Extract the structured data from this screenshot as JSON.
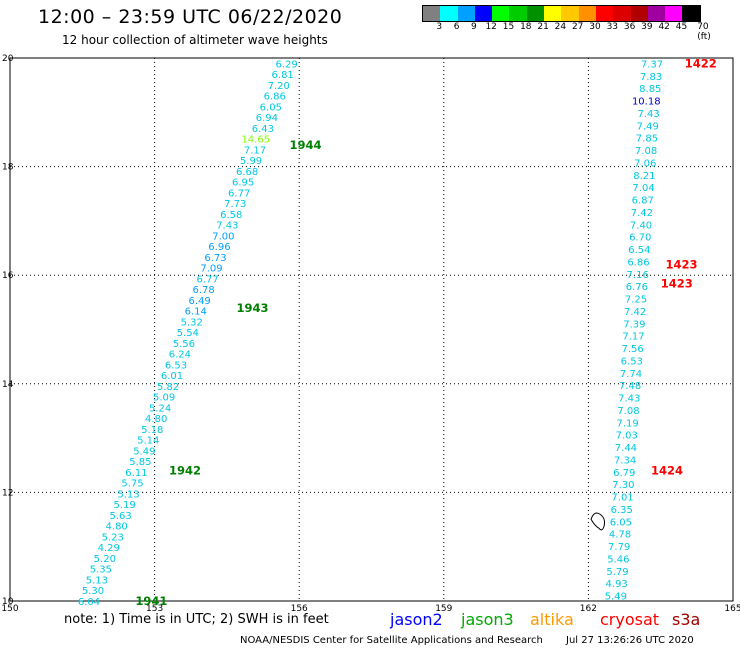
{
  "title": "12:00 – 23:59 UTC 06/22/2020",
  "subtitle": "12 hour collection of altimeter wave heights",
  "legend": {
    "labels": [
      "3",
      "6",
      "9",
      "12",
      "15",
      "18",
      "21",
      "24",
      "27",
      "30",
      "33",
      "36",
      "39",
      "42",
      "45",
      "70 (ft)"
    ],
    "colors": [
      "#808080",
      "#00ffff",
      "#00a0ff",
      "#0000ff",
      "#00ff00",
      "#00cc00",
      "#009000",
      "#ffff00",
      "#ffc800",
      "#ff9000",
      "#ff0000",
      "#dd0000",
      "#b00000",
      "#a000a0",
      "#ff00ff",
      "#000000"
    ]
  },
  "map": {
    "lon_range": [
      150,
      165
    ],
    "lat_range": [
      10,
      20
    ],
    "x_ticks": [
      "150",
      "153",
      "156",
      "159",
      "162",
      "165"
    ],
    "y_ticks": [
      "10",
      "12",
      "14",
      "16",
      "18",
      "20"
    ],
    "tracks": [
      {
        "label": "1944",
        "lat": 18.4,
        "lon": 155.8,
        "color": "#008000"
      },
      {
        "label": "1943",
        "lat": 15.4,
        "lon": 154.7,
        "color": "#008000"
      },
      {
        "label": "1942",
        "lat": 12.4,
        "lon": 153.3,
        "color": "#008000"
      },
      {
        "label": "1941",
        "lat": 10.0,
        "lon": 152.6,
        "color": "#008000"
      },
      {
        "label": "1422",
        "lat": 19.9,
        "lon": 164.0,
        "color": "#ff0000"
      },
      {
        "label": "1423",
        "lat": 16.2,
        "lon": 163.6,
        "color": "#ff0000"
      },
      {
        "label": "1423",
        "lat": 15.85,
        "lon": 163.5,
        "color": "#ff0000"
      },
      {
        "label": "1424",
        "lat": 12.4,
        "lon": 163.3,
        "color": "#ff0000"
      }
    ],
    "swaths": [
      {
        "start_lat": 19.9,
        "start_lon": 155.97,
        "end_lat": 10.0,
        "end_lon": 151.87,
        "values": [
          "6.29",
          "6.81",
          "7.20",
          "6.86",
          "6.05",
          "6.94",
          "6.43",
          "14.65",
          "7.17",
          "5.99",
          "6.68",
          "6.95",
          "6.77",
          "7.73",
          "6.58",
          "7.43",
          "7.00",
          "6.96",
          "6.73",
          "7.09",
          "6.77",
          "6.78",
          "6.49",
          "6.14",
          "5.32",
          "5.54",
          "5.56",
          "6.24",
          "6.53",
          "6.01",
          "5.82",
          "5.09",
          "5.24",
          "4.80",
          "5.18",
          "5.14",
          "5.49",
          "5.85",
          "6.11",
          "5.75",
          "5.13",
          "5.19",
          "5.63",
          "4.80",
          "5.23",
          "4.29",
          "5.20",
          "5.35",
          "5.13",
          "5.30",
          "6.04"
        ],
        "colors": {
          "7": "#80ff00",
          "16": "#00a0ff",
          "17": "#00a0ff",
          "18": "#00a0ff",
          "19": "#00a0ff",
          "21": "#00a0ff",
          "22": "#00a0ff",
          "23": "#00a0ff"
        }
      },
      {
        "start_lat": 19.9,
        "start_lon": 163.55,
        "end_lat": 10.1,
        "end_lon": 162.8,
        "values": [
          "7.37",
          "7.83",
          "8.85",
          "10.18",
          "7.43",
          "7.49",
          "7.85",
          "7.08",
          "7.06",
          "8.21",
          "7.04",
          "6.87",
          "7.42",
          "7.40",
          "6.70",
          "6.54",
          "6.86",
          "7.16",
          "6.76",
          "7.25",
          "7.42",
          "7.39",
          "7.17",
          "7.56",
          "6.53",
          "7.74",
          "7.48",
          "7.43",
          "7.08",
          "7.19",
          "7.03",
          "7.44",
          "7.34",
          "6.79",
          "7.30",
          "7.01",
          "6.35",
          "6.05",
          "4.78",
          "7.79",
          "5.46",
          "5.79",
          "4.93",
          "5.49"
        ],
        "colors": {
          "3": "#0000d0"
        }
      }
    ],
    "land_outline": {
      "lat": 11.45,
      "lon": 162.2
    }
  },
  "note": "note: 1) Time is in UTC; 2) SWH is in feet",
  "satellites": [
    {
      "name": "jason2",
      "color": "#0000ff"
    },
    {
      "name": "jason3",
      "color": "#00aa00"
    },
    {
      "name": "altika",
      "color": "#ff9900"
    },
    {
      "name": "cryosat",
      "color": "#ff0000"
    },
    {
      "name": "s3a",
      "color": "#a00000"
    }
  ],
  "credit": "NOAA/NESDIS Center for Satellite Applications and Research",
  "timestamp": "Jul 27 13:26:26 UTC 2020"
}
